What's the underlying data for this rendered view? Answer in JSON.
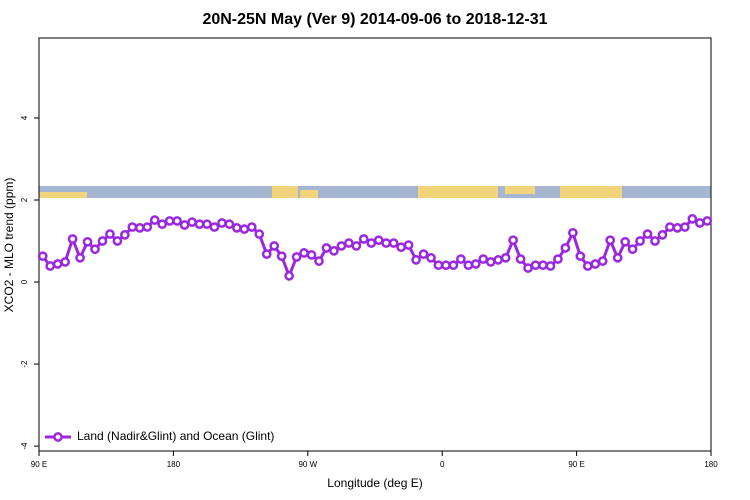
{
  "chart_data": {
    "type": "line",
    "title": "20N-25N May (Ver 9)   2014-09-06 to 2018-12-31",
    "x_label": "Longitude (deg E)",
    "y_label": "XCO2 - MLO trend (ppm)",
    "x": [
      92.5,
      97.5,
      102.5,
      107.5,
      112.5,
      117.5,
      122.5,
      127.5,
      132.5,
      137.5,
      142.5,
      147.5,
      152.5,
      157.5,
      162.5,
      167.5,
      172.5,
      177.5,
      182.5,
      187.5,
      192.5,
      197.5,
      202.5,
      207.5,
      212.5,
      217.5,
      222.5,
      227.5,
      232.5,
      237.5,
      242.5,
      247.5,
      252.5,
      257.5,
      262.5,
      267.5,
      272.5,
      277.5,
      282.5,
      287.5,
      292.5,
      297.5,
      302.5,
      307.5,
      312.5,
      317.5,
      322.5,
      327.5,
      332.5,
      337.5,
      342.5,
      347.5,
      352.5,
      357.5,
      362.5,
      367.5,
      372.5,
      377.5,
      382.5,
      387.5,
      392.5,
      397.5,
      402.5,
      407.5,
      412.5,
      417.5,
      422.5,
      427.5,
      432.5,
      437.5,
      442.5,
      447.5,
      452.5,
      457.5,
      462.5,
      467.5,
      472.5,
      477.5,
      482.5,
      487.5,
      492.5,
      497.5,
      502.5,
      507.5,
      512.5,
      517.5,
      522.5,
      527.5,
      532.5,
      537.5
    ],
    "series": [
      {
        "name": "Land (Nadir&Glint) and Ocean (Glint)",
        "color": "#9b27e0",
        "values": [
          0.63,
          0.39,
          0.44,
          0.49,
          1.05,
          0.59,
          0.98,
          0.8,
          1.0,
          1.17,
          1.0,
          1.15,
          1.34,
          1.32,
          1.34,
          1.51,
          1.41,
          1.49,
          1.49,
          1.39,
          1.46,
          1.41,
          1.41,
          1.34,
          1.44,
          1.41,
          1.32,
          1.29,
          1.34,
          1.17,
          0.68,
          0.88,
          0.63,
          0.15,
          0.61,
          0.71,
          0.66,
          0.51,
          0.83,
          0.76,
          0.88,
          0.95,
          0.88,
          1.05,
          0.95,
          1.02,
          0.95,
          0.95,
          0.85,
          0.9,
          0.54,
          0.68,
          0.59,
          0.41,
          0.41,
          0.41,
          0.56,
          0.41,
          0.44,
          0.56,
          0.49,
          0.54,
          0.59,
          1.02,
          0.56,
          0.34,
          0.41,
          0.41,
          0.39,
          0.56,
          0.83,
          1.2,
          0.63,
          0.39,
          0.44,
          0.51,
          1.02,
          0.59,
          0.98,
          0.8,
          1.0,
          1.17,
          1.0,
          1.15,
          1.34,
          1.32,
          1.34,
          1.54,
          1.44,
          1.49
        ]
      }
    ],
    "xlim": [
      90,
      540
    ],
    "xticks": [
      {
        "value": 90,
        "label": "90 E"
      },
      180,
      {
        "value": 270,
        "label": "90 W"
      },
      {
        "value": 360,
        "label": "0"
      },
      {
        "value": 450,
        "label": "90 E"
      },
      {
        "value": 540,
        "label": "180"
      }
    ],
    "ylim": [
      -4.12,
      5.95
    ],
    "yticks": [
      -4,
      -2,
      0,
      2,
      4
    ],
    "legend": "bottom-left"
  }
}
